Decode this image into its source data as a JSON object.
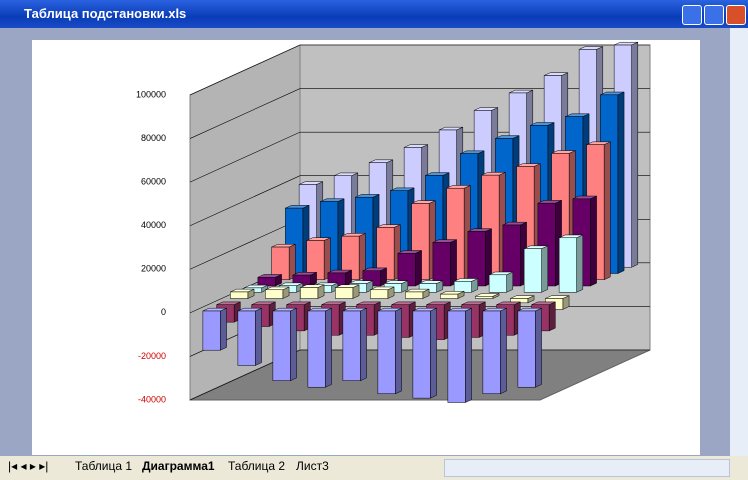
{
  "window_title": "Таблица подстановки.xls",
  "sheet_tabs": [
    "Таблица 1",
    "Диаграмма1",
    "Таблица 2",
    "Лист3"
  ],
  "chart_data": {
    "type": "bar3d",
    "categories": [
      null,
      null,
      null,
      null,
      null,
      null,
      null,
      null,
      null,
      null
    ],
    "series": [
      {
        "color": "#9999ff",
        "values": [
          -18000,
          -25000,
          -32000,
          -35000,
          -32000,
          -38000,
          -40000,
          -42000,
          -38000,
          -35000
        ]
      },
      {
        "color": "#993366",
        "values": [
          -8000,
          -10000,
          -12000,
          -14000,
          -14000,
          -15000,
          -16000,
          -15000,
          -14000,
          -12000
        ]
      },
      {
        "color": "#ffffcc",
        "values": [
          3000,
          4000,
          5000,
          5000,
          4000,
          3000,
          2000,
          1000,
          -2000,
          -5000
        ]
      },
      {
        "color": "#ccffff",
        "values": [
          2000,
          3000,
          3000,
          4000,
          4000,
          4000,
          5000,
          8000,
          20000,
          25000
        ]
      },
      {
        "color": "#660066",
        "values": [
          4000,
          5000,
          6000,
          7000,
          15000,
          20000,
          25000,
          28000,
          38000,
          40000
        ]
      },
      {
        "color": "#ff8080",
        "values": [
          15000,
          18000,
          20000,
          24000,
          35000,
          42000,
          48000,
          52000,
          58000,
          62000
        ]
      },
      {
        "color": "#0066cc",
        "values": [
          30000,
          33000,
          35000,
          38000,
          45000,
          55000,
          62000,
          68000,
          72000,
          82000
        ]
      },
      {
        "color": "#ccccff",
        "values": [
          38000,
          42000,
          48000,
          55000,
          63000,
          72000,
          80000,
          88000,
          100000,
          102000
        ]
      }
    ],
    "ylim": [
      -40000,
      100000
    ],
    "yticks": [
      -40000,
      -20000,
      0,
      20000,
      40000,
      60000,
      80000,
      100000
    ],
    "negative_tick_color": "#cc0000",
    "grid": true
  }
}
